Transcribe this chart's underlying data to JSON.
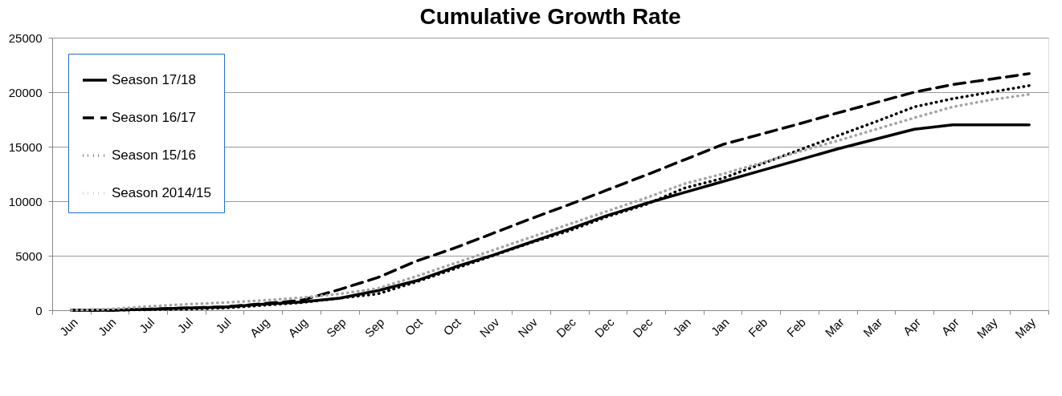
{
  "chart_data": {
    "type": "line",
    "title": "Cumulative Growth Rate",
    "categories": [
      "Jun",
      "Jun",
      "Jul",
      "Jul",
      "Jul",
      "Aug",
      "Aug",
      "Sep",
      "Sep",
      "Oct",
      "Oct",
      "Nov",
      "Nov",
      "Dec",
      "Dec",
      "Dec",
      "Jan",
      "Jan",
      "Feb",
      "Feb",
      "Mar",
      "Mar",
      "Apr",
      "Apr",
      "May",
      "May"
    ],
    "series": [
      {
        "name": "Season 17/18",
        "color": "#000000",
        "line_style": "solid",
        "values": [
          0,
          0,
          100,
          200,
          300,
          550,
          750,
          1100,
          1800,
          2700,
          3950,
          5050,
          6250,
          7450,
          8700,
          9800,
          10800,
          11800,
          12800,
          13800,
          14800,
          15700,
          16600,
          17000,
          17000,
          17000
        ]
      },
      {
        "name": "Season 16/17",
        "color": "#000000",
        "line_style": "dashed",
        "values": [
          0,
          0,
          100,
          200,
          300,
          600,
          900,
          1900,
          3000,
          4500,
          5700,
          7050,
          8400,
          9700,
          11050,
          12400,
          13800,
          15200,
          16150,
          17100,
          18100,
          19050,
          20000,
          20700,
          21200,
          21700
        ]
      },
      {
        "name": "Season 15/16",
        "color": "#000000",
        "line_style": "dotted",
        "values": [
          0,
          0,
          50,
          100,
          200,
          450,
          700,
          1100,
          1500,
          2600,
          3800,
          5000,
          6200,
          7300,
          8600,
          9700,
          11200,
          12100,
          13400,
          14700,
          16000,
          17300,
          18650,
          19400,
          20000,
          20600
        ]
      },
      {
        "name": "Season 2014/15",
        "color": "#a6a6a6",
        "line_style": "dotted",
        "values": [
          0,
          100,
          350,
          550,
          700,
          900,
          1150,
          1500,
          2000,
          3100,
          4300,
          5500,
          6700,
          7900,
          9100,
          10300,
          11600,
          12500,
          13500,
          14550,
          15550,
          16600,
          17650,
          18650,
          19300,
          19800
        ]
      }
    ],
    "ylim": [
      0,
      25000
    ],
    "yticks": [
      0,
      5000,
      10000,
      15000,
      20000,
      25000
    ],
    "grid": "y",
    "legend": "top left",
    "marker": "none"
  }
}
